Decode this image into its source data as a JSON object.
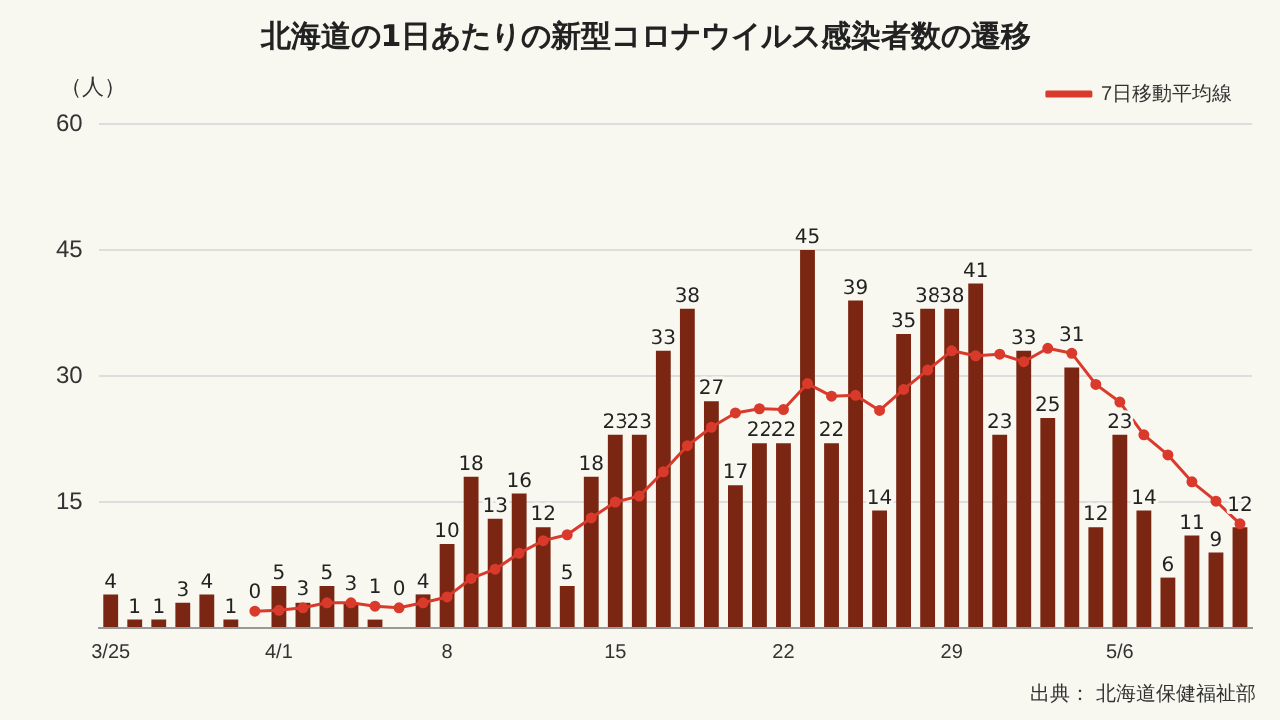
{
  "chart_data": {
    "type": "bar",
    "title": "北海道の1日あたりの新型コロナウイルス感染者数の遷移",
    "ylabel": "（人）",
    "categories": [
      "3/25",
      null,
      null,
      null,
      null,
      null,
      null,
      "4/1",
      null,
      null,
      null,
      null,
      null,
      null,
      "8",
      null,
      null,
      null,
      null,
      null,
      null,
      "15",
      null,
      null,
      null,
      null,
      null,
      null,
      "22",
      null,
      null,
      null,
      null,
      null,
      null,
      "29",
      null,
      null,
      null,
      null,
      null,
      null,
      "5/6",
      null,
      null,
      null,
      null,
      null
    ],
    "series": [
      {
        "color": "#7a2612",
        "data_labels": true,
        "values": [
          4,
          1,
          1,
          3,
          4,
          1,
          0,
          5,
          3,
          5,
          3,
          1,
          0,
          4,
          10,
          18,
          13,
          16,
          12,
          5,
          18,
          23,
          23,
          33,
          38,
          27,
          17,
          22,
          22,
          45,
          22,
          39,
          14,
          35,
          38,
          38,
          41,
          23,
          33,
          25,
          31,
          12,
          23,
          14,
          6,
          11,
          9,
          12
        ]
      },
      {
        "type": "line",
        "name": "7日移動平均線",
        "color": "#d93a2b",
        "marker": "circle",
        "values": [
          null,
          null,
          null,
          null,
          null,
          null,
          2.0,
          2.1,
          2.4,
          3.0,
          3.0,
          2.6,
          2.4,
          3.0,
          3.7,
          5.9,
          7.0,
          8.9,
          10.4,
          11.1,
          13.1,
          15.0,
          15.7,
          18.6,
          21.7,
          23.9,
          25.6,
          26.1,
          26.0,
          29.1,
          27.6,
          27.7,
          25.9,
          28.4,
          30.7,
          33.0,
          32.4,
          32.6,
          31.7,
          33.3,
          32.7,
          29.0,
          26.9,
          23.0,
          20.6,
          17.4,
          15.1,
          12.4
        ]
      }
    ],
    "ylim": [
      0,
      60
    ],
    "yticks": [
      {
        "value": 0,
        "label": null
      },
      15,
      30,
      45,
      60
    ],
    "grid": "y",
    "legend": "top right",
    "annotations": [
      "出典： 北海道保健福祉部"
    ]
  }
}
